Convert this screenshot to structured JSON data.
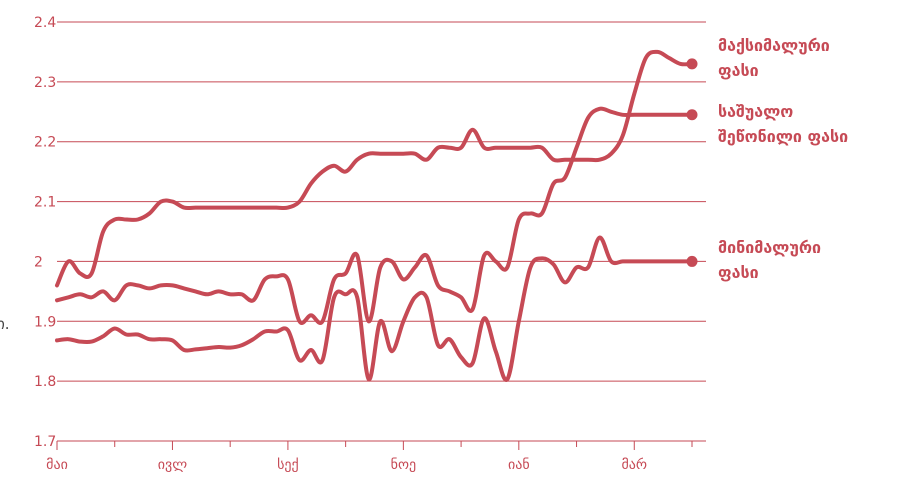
{
  "chart_data": {
    "type": "line",
    "title": "",
    "xlabel": "",
    "ylabel": "",
    "ylim": [
      1.7,
      2.4
    ],
    "yticks": [
      "1.7",
      "1.8",
      "1.9",
      "2",
      "2.1",
      "2.2",
      "2.3",
      "2.4"
    ],
    "x_ticks": [
      "მაი",
      "ივლ",
      "სექ",
      "ნოე",
      "იან",
      "მარ"
    ],
    "grid": true,
    "legend": "direct labels at right end of each line",
    "cut_off_label": "ი.",
    "color": "#c64a55",
    "x": [
      0,
      1,
      2,
      3,
      4,
      5,
      6,
      7,
      8,
      9,
      10,
      11,
      12,
      13,
      14,
      15,
      16,
      17,
      18,
      19,
      20,
      21,
      22,
      23,
      24,
      25,
      26,
      27,
      28,
      29,
      30,
      31,
      32,
      33,
      34,
      35,
      36,
      37,
      38,
      39,
      40,
      41,
      42,
      43,
      44,
      45,
      46,
      47,
      48,
      49,
      50,
      51,
      52,
      53,
      54,
      55
    ],
    "series": [
      {
        "name": "მაქსიმალური ფასი",
        "label_lines": [
          "მაქსიმალური",
          "ფასი"
        ],
        "values": [
          1.96,
          2.0,
          1.98,
          1.98,
          2.05,
          2.07,
          2.07,
          2.07,
          2.08,
          2.1,
          2.1,
          2.09,
          2.09,
          2.09,
          2.09,
          2.09,
          2.09,
          2.09,
          2.09,
          2.09,
          2.09,
          2.1,
          2.13,
          2.15,
          2.16,
          2.15,
          2.17,
          2.18,
          2.18,
          2.18,
          2.18,
          2.18,
          2.17,
          2.19,
          2.19,
          2.19,
          2.22,
          2.19,
          2.19,
          2.19,
          2.19,
          2.19,
          2.19,
          2.17,
          2.17,
          2.17,
          2.17,
          2.17,
          2.18,
          2.21,
          2.28,
          2.34,
          2.35,
          2.34,
          2.33,
          2.33
        ]
      },
      {
        "name": "საშუალო შეწონილი ფასი",
        "label_lines": [
          "საშუალო",
          "შეწონილი ფასი"
        ],
        "values": [
          1.935,
          1.94,
          1.945,
          1.94,
          1.95,
          1.935,
          1.96,
          1.96,
          1.955,
          1.96,
          1.96,
          1.955,
          1.95,
          1.945,
          1.95,
          1.945,
          1.945,
          1.935,
          1.97,
          1.975,
          1.97,
          1.9,
          1.91,
          1.9,
          1.97,
          1.98,
          2.01,
          1.9,
          1.99,
          2.0,
          1.97,
          1.99,
          2.01,
          1.96,
          1.95,
          1.94,
          1.92,
          2.01,
          2.0,
          1.99,
          2.07,
          2.08,
          2.08,
          2.13,
          2.14,
          2.19,
          2.24,
          2.255,
          2.25,
          2.245,
          2.245,
          2.245,
          2.245,
          2.245,
          2.245,
          2.245
        ]
      },
      {
        "name": "მინიმალური ფასი",
        "label_lines": [
          "მინიმალური",
          "ფასი"
        ],
        "values": [
          1.868,
          1.87,
          1.866,
          1.866,
          1.875,
          1.888,
          1.878,
          1.878,
          1.87,
          1.87,
          1.868,
          1.852,
          1.853,
          1.855,
          1.857,
          1.856,
          1.86,
          1.87,
          1.883,
          1.883,
          1.885,
          1.835,
          1.852,
          1.835,
          1.94,
          1.945,
          1.94,
          1.803,
          1.9,
          1.85,
          1.9,
          1.94,
          1.94,
          1.86,
          1.87,
          1.84,
          1.83,
          1.905,
          1.85,
          1.803,
          1.9,
          1.99,
          2.005,
          1.995,
          1.965,
          1.99,
          1.99,
          2.04,
          2.0,
          2.0,
          2.0,
          2.0,
          2.0,
          2.0,
          2.0,
          2.0
        ]
      }
    ]
  }
}
